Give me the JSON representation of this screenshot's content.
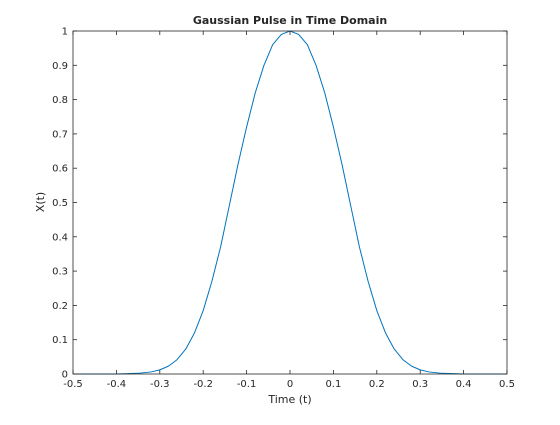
{
  "chart_data": {
    "type": "line",
    "title": "Gaussian Pulse in Time Domain",
    "xlabel": "Time (t)",
    "ylabel": "X(t)",
    "xlim": [
      -0.5,
      0.5
    ],
    "ylim": [
      0,
      1
    ],
    "xticks": [
      -0.5,
      -0.4,
      -0.3,
      -0.2,
      -0.1,
      0,
      0.1,
      0.2,
      0.3,
      0.4,
      0.5
    ],
    "xtick_labels": [
      "-0.5",
      "-0.4",
      "-0.3",
      "-0.2",
      "-0.1",
      "0",
      "0.1",
      "0.2",
      "0.3",
      "0.4",
      "0.5"
    ],
    "yticks": [
      0,
      0.1,
      0.2,
      0.3,
      0.4,
      0.5,
      0.6,
      0.7,
      0.8,
      0.9,
      1
    ],
    "ytick_labels": [
      "0",
      "0.1",
      "0.2",
      "0.3",
      "0.4",
      "0.5",
      "0.6",
      "0.7",
      "0.8",
      "0.9",
      "1"
    ],
    "grid": false,
    "series": [
      {
        "color": "#0072bd",
        "x": [
          -0.5,
          -0.45,
          -0.4,
          -0.35,
          -0.32,
          -0.3,
          -0.28,
          -0.26,
          -0.24,
          -0.22,
          -0.2,
          -0.18,
          -0.16,
          -0.14,
          -0.12,
          -0.1,
          -0.08,
          -0.06,
          -0.04,
          -0.02,
          0,
          0.02,
          0.04,
          0.06,
          0.08,
          0.1,
          0.12,
          0.14,
          0.16,
          0.18,
          0.2,
          0.22,
          0.24,
          0.26,
          0.28,
          0.3,
          0.32,
          0.35,
          0.4,
          0.45,
          0.5
        ],
        "y": [
          0,
          0,
          0,
          0.002,
          0.006,
          0.012,
          0.023,
          0.042,
          0.073,
          0.12,
          0.185,
          0.27,
          0.37,
          0.49,
          0.61,
          0.72,
          0.82,
          0.9,
          0.96,
          0.99,
          1,
          0.99,
          0.96,
          0.9,
          0.82,
          0.72,
          0.61,
          0.49,
          0.37,
          0.27,
          0.185,
          0.12,
          0.073,
          0.042,
          0.023,
          0.012,
          0.006,
          0.002,
          0,
          0,
          0
        ]
      }
    ]
  }
}
